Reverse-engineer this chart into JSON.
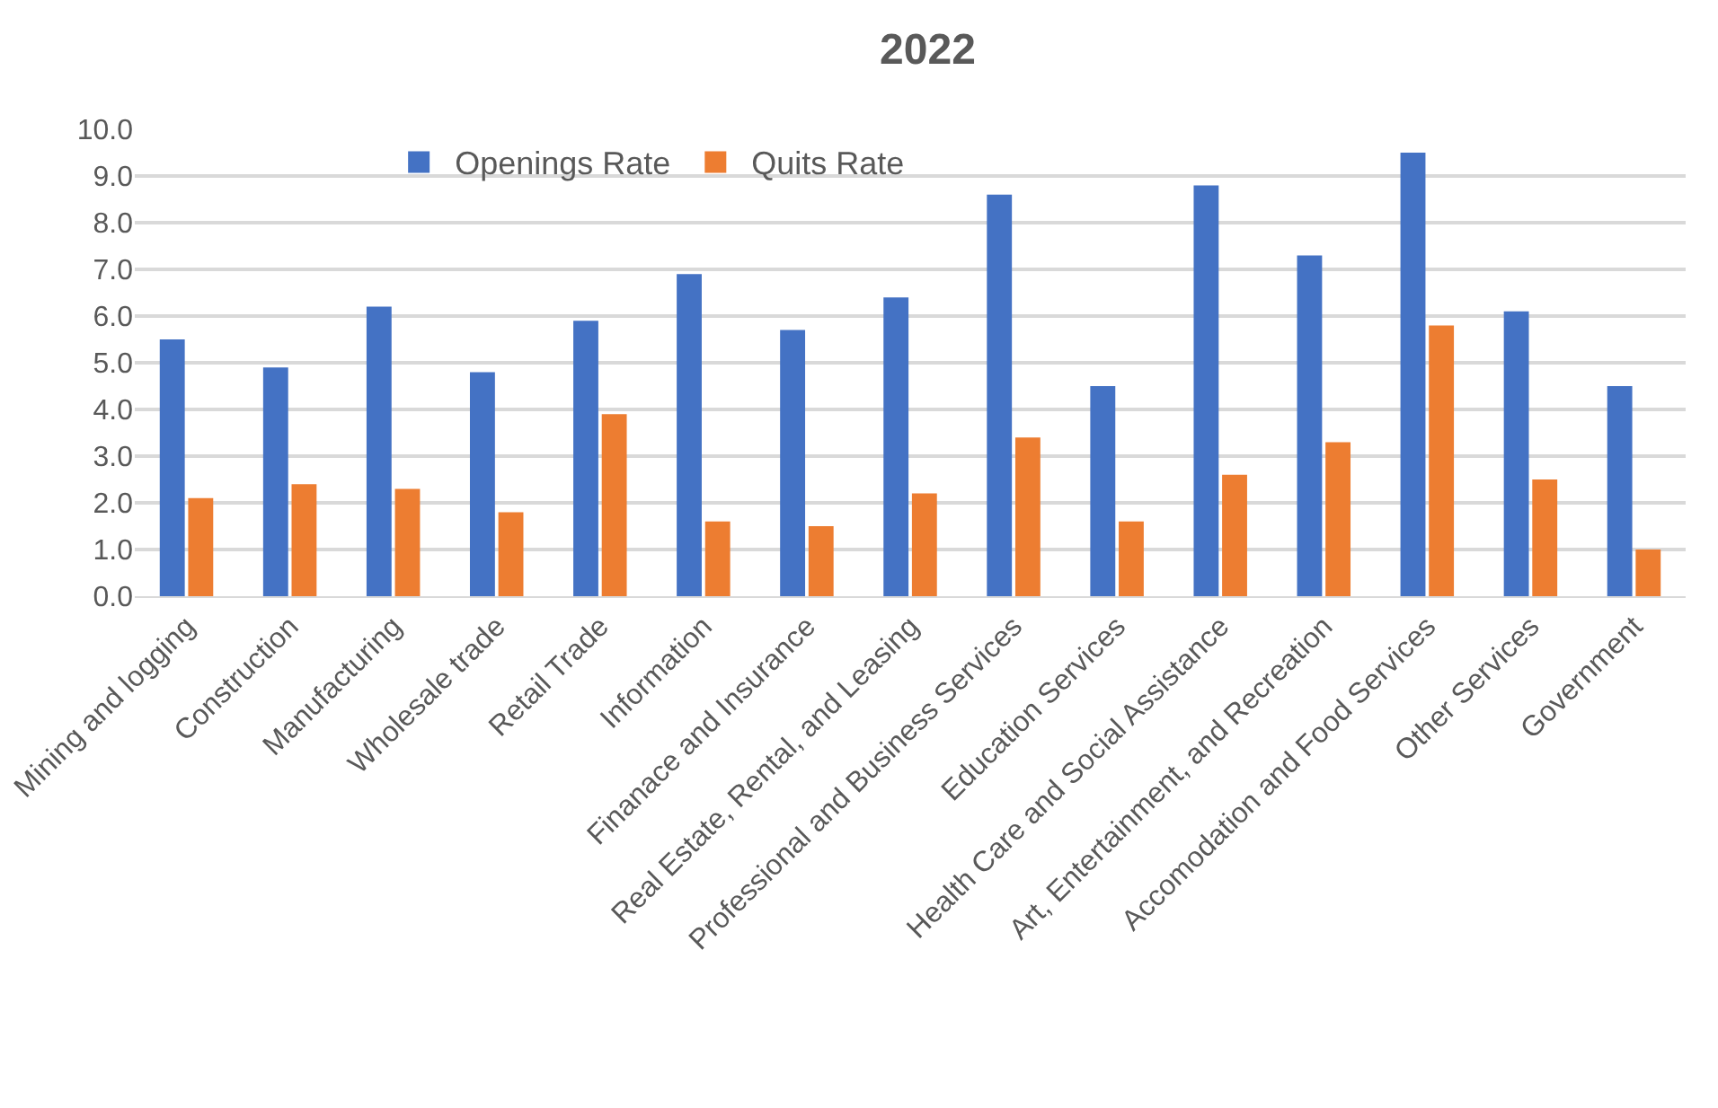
{
  "chart_data": {
    "type": "bar",
    "title": "2022",
    "categories": [
      "Mining and logging",
      "Construction",
      "Manufacturing",
      "Wholesale trade",
      "Retail Trade",
      "Information",
      "Finanace and Insurance",
      "Real Estate, Rental, and Leasing",
      "Professional and Business Services",
      "Education Services",
      "Health Care and Social Assistance",
      "Art, Entertainment, and Recreation",
      "Accomodation and Food Services",
      "Other Services",
      "Government"
    ],
    "series": [
      {
        "name": "Openings Rate",
        "color": "#4472c4",
        "values": [
          5.5,
          4.9,
          6.2,
          4.8,
          5.9,
          6.9,
          5.7,
          6.4,
          8.6,
          4.5,
          8.8,
          7.3,
          9.5,
          6.1,
          4.5
        ]
      },
      {
        "name": "Quits Rate",
        "color": "#ed7d31",
        "values": [
          2.1,
          2.4,
          2.3,
          1.8,
          3.9,
          1.6,
          1.5,
          2.2,
          3.4,
          1.6,
          2.6,
          3.3,
          5.8,
          2.5,
          1.0
        ]
      }
    ],
    "ylim": [
      0,
      10
    ],
    "yticks": [
      {
        "value": 0,
        "label": "0.0"
      },
      {
        "value": 1,
        "label": "1.0"
      },
      {
        "value": 2,
        "label": "2.0"
      },
      {
        "value": 3,
        "label": "3.0"
      },
      {
        "value": 4,
        "label": "4.0"
      },
      {
        "value": 5,
        "label": "5.0"
      },
      {
        "value": 6,
        "label": "6.0"
      },
      {
        "value": 7,
        "label": "7.0"
      },
      {
        "value": 8,
        "label": "8.0"
      },
      {
        "value": 9,
        "label": "9.0"
      },
      {
        "value": 10,
        "label": "10.0"
      }
    ],
    "grid": "y",
    "legend": "top left"
  }
}
